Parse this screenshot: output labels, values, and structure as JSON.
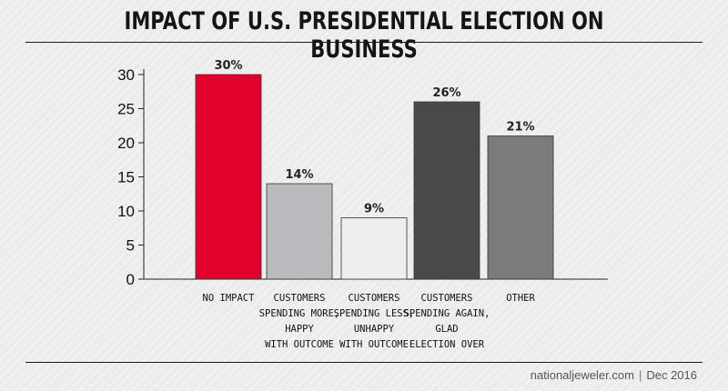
{
  "chart_data": {
    "type": "bar",
    "title": "IMPACT OF U.S. PRESIDENTIAL ELECTION ON BUSINESS",
    "categories": [
      [
        "NO IMPACT"
      ],
      [
        "CUSTOMERS",
        "SPENDING MORE,",
        "HAPPY",
        "WITH OUTCOME"
      ],
      [
        "CUSTOMERS",
        "SPENDING LESS,",
        "UNHAPPY",
        "WITH OUTCOME"
      ],
      [
        "CUSTOMERS",
        "SPENDING AGAIN,",
        "GLAD",
        "ELECTION OVER"
      ],
      [
        "OTHER"
      ]
    ],
    "values": [
      30,
      14,
      9,
      26,
      21
    ],
    "value_labels": [
      "30%",
      "14%",
      "9%",
      "26%",
      "21%"
    ],
    "colors": [
      "#e2002d",
      "#b9babd",
      "#eeeeef",
      "#48494b",
      "#7a7b7d"
    ],
    "yticks": [
      0,
      5,
      10,
      15,
      20,
      25,
      30
    ],
    "ylim": [
      0,
      30
    ],
    "xlabel": "",
    "ylabel": ""
  },
  "footer": {
    "source": "nationaljeweler.com",
    "separator": "|",
    "date": "Dec 2016"
  }
}
